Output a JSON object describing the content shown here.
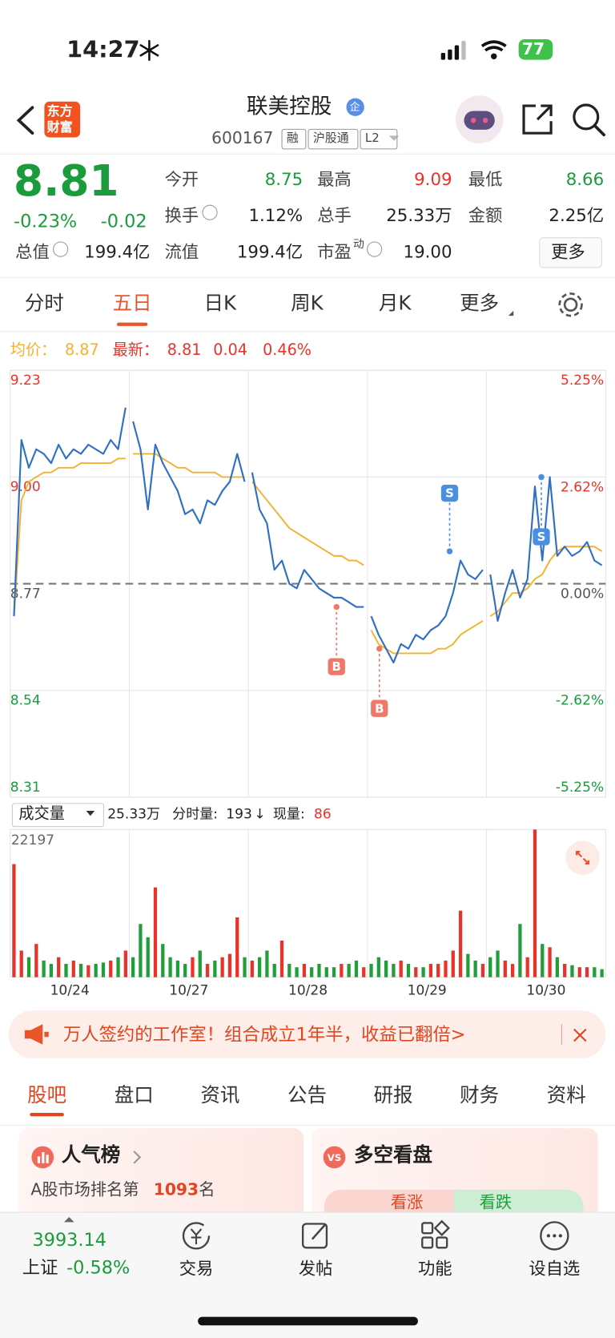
{
  "status_bar": {
    "time": "14:27",
    "battery": "77"
  },
  "header": {
    "logo": [
      "东方",
      "财富"
    ],
    "title": "联美控股",
    "badge": "企",
    "code": "600167",
    "tags": [
      "融",
      "沪股通",
      "L2"
    ]
  },
  "quote": {
    "price": "8.81",
    "color": "#1a9b3c",
    "change_pct": "-0.23%",
    "change": "-0.02",
    "stats": [
      {
        "label": "今开",
        "value": "8.75",
        "color": "#1a9b3c"
      },
      {
        "label": "最高",
        "value": "9.09",
        "color": "#e8332a"
      },
      {
        "label": "最低",
        "value": "8.66",
        "color": "#1a9b3c"
      },
      {
        "label": "换手",
        "value": "1.12%"
      },
      {
        "label": "总手",
        "value": "25.33万"
      },
      {
        "label": "金额",
        "value": "2.25亿"
      },
      {
        "label": "总值",
        "value": "199.4亿"
      },
      {
        "label": "流值",
        "value": "199.4亿"
      },
      {
        "label": "市盈",
        "sup": "动",
        "value": "19.00"
      }
    ],
    "more": "更多"
  },
  "period_tabs": {
    "items": [
      "分时",
      "五日",
      "日K",
      "周K",
      "月K",
      "更多"
    ],
    "active": 1
  },
  "legend": {
    "avg_label": "均价：",
    "avg": "8.87",
    "latest_label": "最新：",
    "latest": "8.81",
    "change": "0.04",
    "change_pct": "0.46%"
  },
  "volume_bar": {
    "selector": "成交量",
    "total": "25.33万",
    "tick_label": "分时量:",
    "tick_value": "193",
    "arrow": "↓",
    "current_label": "现量:",
    "current": "86"
  },
  "banner": {
    "text": "万人签约的工作室！组合成立1年半，收益已翻倍>"
  },
  "content_tabs": {
    "items": [
      "股吧",
      "盘口",
      "资讯",
      "公告",
      "研报",
      "财务",
      "资料"
    ],
    "active": 0
  },
  "cards": [
    {
      "title": "人气榜",
      "subtitle_prefix": "A股市场排名第",
      "rank": "1093",
      "subtitle_suffix": "名"
    },
    {
      "title": "多空看盘",
      "bull": "看涨",
      "bear": "看跌"
    }
  ],
  "bottom_nav": {
    "index_value": "3993.14",
    "index_name": "上证",
    "index_change": "-0.58%",
    "items": [
      "交易",
      "发帖",
      "功能",
      "设自选"
    ]
  },
  "chart_data": [
    {
      "type": "line",
      "ylim": [
        8.31,
        9.23
      ],
      "yticks": [
        8.31,
        8.54,
        8.77,
        {
          "value": 9,
          "label": "9.00"
        },
        9.23
      ],
      "y2lim": [
        -5.25,
        5.25
      ],
      "y2ticks": [
        {
          "value": -5.25,
          "label": "-5.25%"
        },
        {
          "value": -2.62,
          "label": "-2.62%"
        },
        {
          "value": 0,
          "label": "0.00%"
        },
        {
          "value": 2.62,
          "label": "2.62%"
        },
        {
          "value": 5.25,
          "label": "5.25%"
        }
      ],
      "reference_line": 8.77,
      "grid": true,
      "series": [
        {
          "color": "#2f6fc4",
          "values": [
            [
              8.7,
              9.08,
              9.02,
              9.06,
              9.05,
              9.03,
              9.07,
              9.04,
              9.06,
              9.05,
              9.07,
              9.06,
              9.05,
              9.08,
              9.06,
              9.15
            ],
            [
              9.12,
              9.06,
              8.93,
              9.07,
              9.03,
              9.0,
              8.97,
              8.92,
              8.93,
              8.9,
              8.95,
              8.94,
              8.97,
              8.99,
              9.05,
              8.99
            ],
            [
              9.01,
              8.93,
              8.9,
              8.8,
              8.82,
              8.77,
              8.76,
              8.8,
              8.78,
              8.76,
              8.75,
              8.74,
              8.74,
              8.73,
              8.72,
              8.72
            ],
            [
              8.7,
              8.66,
              8.63,
              8.6,
              8.64,
              8.63,
              8.66,
              8.65,
              8.67,
              8.68,
              8.7,
              8.75,
              8.82,
              8.79,
              8.78,
              8.8
            ],
            [
              8.79,
              8.69,
              8.75,
              8.8,
              8.74,
              8.78,
              8.98,
              8.82,
              9.0,
              8.83,
              8.85,
              8.83,
              8.84,
              8.86,
              8.82,
              8.81
            ]
          ]
        },
        {
          "color": "#f5b12e",
          "values": [
            [
              8.7,
              8.95,
              8.99,
              9.0,
              9.01,
              9.01,
              9.02,
              9.02,
              9.02,
              9.03,
              9.03,
              9.03,
              9.03,
              9.03,
              9.04,
              9.04
            ],
            [
              9.05,
              9.05,
              9.05,
              9.05,
              9.04,
              9.03,
              9.02,
              9.02,
              9.01,
              9.01,
              9.01,
              9.01,
              9.0,
              9.0,
              9.0,
              9.0
            ],
            [
              8.99,
              8.97,
              8.95,
              8.93,
              8.91,
              8.89,
              8.88,
              8.87,
              8.86,
              8.85,
              8.84,
              8.83,
              8.83,
              8.82,
              8.82,
              8.81
            ],
            [
              8.67,
              8.64,
              8.63,
              8.62,
              8.62,
              8.62,
              8.62,
              8.62,
              8.62,
              8.63,
              8.63,
              8.64,
              8.66,
              8.67,
              8.68,
              8.69
            ],
            [
              8.7,
              8.71,
              8.73,
              8.75,
              8.75,
              8.76,
              8.78,
              8.79,
              8.82,
              8.84,
              8.85,
              8.85,
              8.85,
              8.85,
              8.85,
              8.84
            ]
          ]
        }
      ],
      "annotations": [
        {
          "text": "B",
          "x": 2.74,
          "y": 8.72,
          "side": "below",
          "color": "#f0786a"
        },
        {
          "text": "B",
          "x": 3.1,
          "y": 8.63,
          "side": "below",
          "color": "#f0786a"
        },
        {
          "text": "S",
          "x": 3.69,
          "y": 8.84,
          "side": "above",
          "color": "#4a90e2"
        },
        {
          "text": "S",
          "x": 4.46,
          "y": 9.0,
          "side": "below",
          "color": "#4a90e2"
        }
      ]
    },
    {
      "type": "bar",
      "categories": [
        "10/24",
        "10/27",
        "10/28",
        "10/29",
        "10/30"
      ],
      "ylim": [
        0,
        22197
      ],
      "yticks": [
        22197
      ],
      "colors": {
        "up": "#e8332a",
        "down": "#1f9e3a"
      },
      "values": [
        [
          17000,
          4000,
          3000,
          5000,
          2500,
          2000,
          3000,
          2000,
          2500,
          2000,
          1800,
          2000,
          2200,
          2500,
          3000,
          4000
        ],
        [
          3000,
          8000,
          6000,
          13500,
          5000,
          3000,
          2500,
          2000,
          3000,
          4000,
          2000,
          2500,
          3000,
          3500,
          9000,
          3000
        ],
        [
          2500,
          3000,
          4000,
          2000,
          5500,
          2000,
          1500,
          2000,
          1500,
          2000,
          1500,
          1500,
          2000,
          2000,
          2500,
          1500
        ],
        [
          2000,
          3000,
          2500,
          2000,
          2500,
          2000,
          1500,
          1500,
          2000,
          2000,
          2500,
          4000,
          10000,
          3500,
          2500,
          2000
        ],
        [
          3000,
          4000,
          2500,
          2000,
          8000,
          3000,
          22197,
          5000,
          4500,
          3000,
          2000,
          1800,
          1500,
          1500,
          1500,
          1200
        ]
      ]
    }
  ]
}
